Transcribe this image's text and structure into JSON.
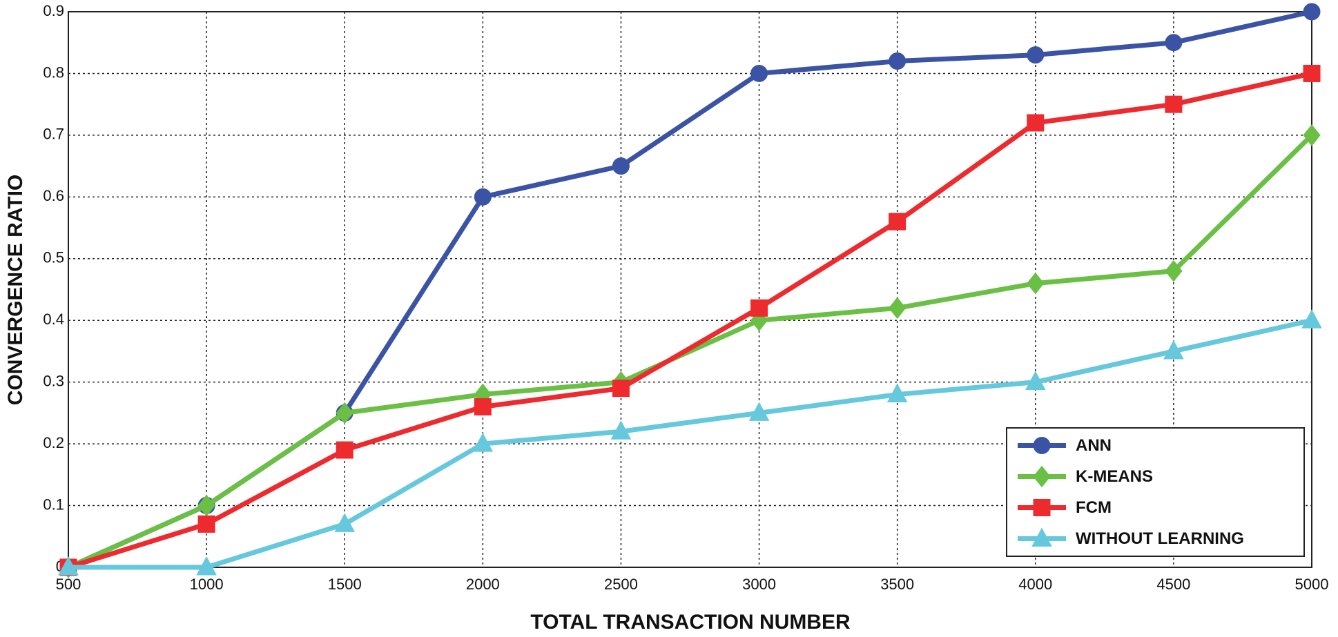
{
  "chart_data": {
    "type": "line",
    "x_label": "TOTAL TRANSACTION NUMBER",
    "y_label": "CONVERGENCE RATIO",
    "x": [
      500,
      1000,
      1500,
      2000,
      2500,
      3000,
      3500,
      4000,
      4500,
      5000
    ],
    "xlim": [
      500,
      5000
    ],
    "xticks": [
      500,
      1000,
      1500,
      2000,
      2500,
      3000,
      3500,
      4000,
      4500,
      5000
    ],
    "ylim": [
      0,
      0.9
    ],
    "yticks": [
      0,
      0.1,
      0.2,
      0.3,
      0.4,
      0.5,
      0.6,
      0.7,
      0.8,
      0.9
    ],
    "grid": true,
    "legend": "lower right",
    "series": [
      {
        "name": "ANN",
        "color": "#3a53a4",
        "marker": "circle",
        "values": [
          0,
          0.1,
          0.25,
          0.6,
          0.65,
          0.8,
          0.82,
          0.83,
          0.85,
          0.9
        ]
      },
      {
        "name": "K-MEANS",
        "color": "#6abf45",
        "marker": "diamond",
        "values": [
          0,
          0.1,
          0.25,
          0.28,
          0.3,
          0.4,
          0.42,
          0.46,
          0.48,
          0.7
        ]
      },
      {
        "name": "FCM",
        "color": "#ed2a2e",
        "marker": "square",
        "values": [
          0,
          0.07,
          0.19,
          0.26,
          0.29,
          0.42,
          0.56,
          0.72,
          0.75,
          0.8
        ]
      },
      {
        "name": "WITHOUT LEARNING",
        "color": "#66c8dc",
        "marker": "triangle",
        "values": [
          0,
          0,
          0.07,
          0.2,
          0.22,
          0.25,
          0.28,
          0.3,
          0.35,
          0.4
        ]
      }
    ]
  }
}
